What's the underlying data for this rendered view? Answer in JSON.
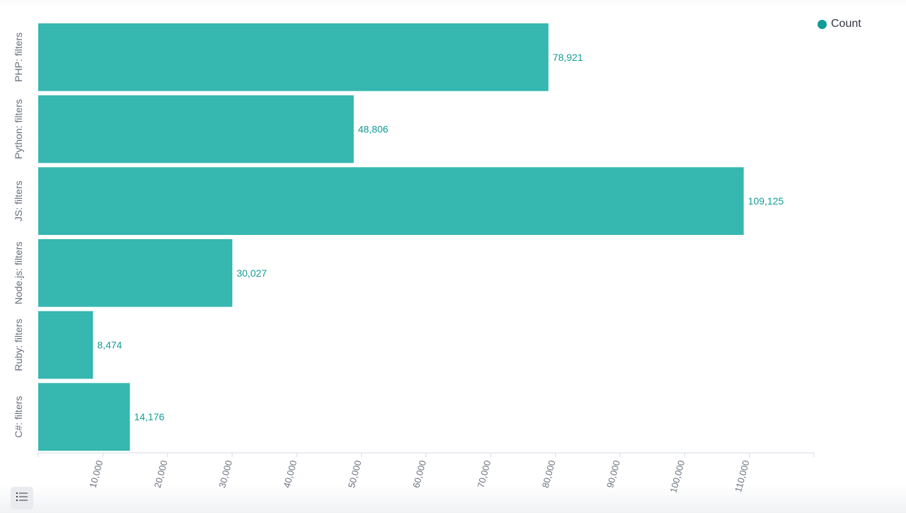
{
  "colors": {
    "bar": "#36b7b0",
    "label": "#129c95",
    "axis": "#d3dae6",
    "tick_text": "#69707d",
    "category_text": "#69707d"
  },
  "legend": {
    "label": "Count",
    "toggle_icon": "list-icon"
  },
  "chart_data": {
    "type": "bar",
    "orientation": "horizontal",
    "categories": [
      "PHP: filters",
      "Python: filters",
      "JS: filters",
      "Node.js: filters",
      "Ruby: filters",
      "C#: filters"
    ],
    "series": [
      {
        "name": "Count",
        "values": [
          78921,
          48806,
          109125,
          30027,
          8474,
          14176
        ],
        "value_labels": [
          "78,921",
          "48,806",
          "109,125",
          "30,027",
          "8,474",
          "14,176"
        ]
      }
    ],
    "xlim": [
      0,
      120000
    ],
    "xticks": [
      10000,
      20000,
      30000,
      40000,
      50000,
      60000,
      70000,
      80000,
      90000,
      100000,
      110000
    ],
    "xtick_labels": [
      "10,000",
      "20,000",
      "30,000",
      "40,000",
      "50,000",
      "60,000",
      "70,000",
      "80,000",
      "90,000",
      "100,000",
      "110,000"
    ],
    "title": "",
    "xlabel": "",
    "ylabel": "",
    "legend_position": "top-right",
    "grid": false
  }
}
